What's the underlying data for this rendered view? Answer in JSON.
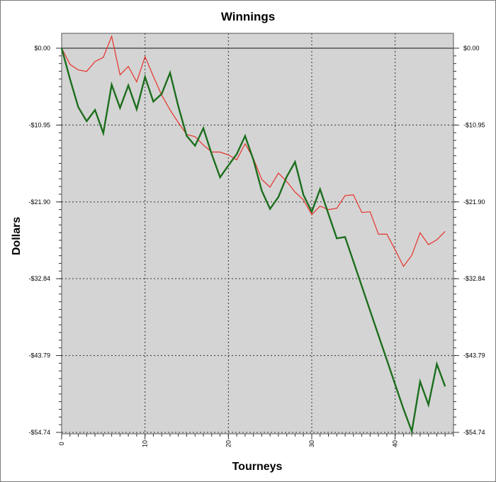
{
  "chart_data": {
    "type": "line",
    "title": "Winnings",
    "xlabel": "Tourneys",
    "ylabel": "Dollars",
    "xlim": [
      0,
      47
    ],
    "ylim": [
      -54.74,
      1.5
    ],
    "x_ticks": [
      0,
      10,
      20,
      30,
      40
    ],
    "y_ticks": [
      0,
      -10.95,
      -21.9,
      -32.84,
      -43.79,
      -54.74
    ],
    "y_tick_labels": [
      "$0.00",
      "-$10.95",
      "-$21.90",
      "-$32.84",
      "-$43.79",
      "-$54.74"
    ],
    "grid": true,
    "background": "#d4d4d4",
    "series": [
      {
        "color": "#e8312a",
        "width": 1.2,
        "x": [
          0,
          1,
          2,
          3,
          4,
          5,
          6,
          7,
          8,
          9,
          10,
          11,
          12,
          13,
          14,
          15,
          16,
          17,
          18,
          19,
          20,
          21,
          22,
          23,
          24,
          25,
          26,
          27,
          28,
          29,
          30,
          31,
          32,
          33,
          34,
          35,
          36,
          37,
          38,
          39,
          40,
          41,
          42,
          43,
          44,
          45,
          46
        ],
        "values": [
          0,
          -2.3,
          -3.1,
          -3.3,
          -1.9,
          -1.3,
          1.7,
          -3.8,
          -2.6,
          -4.8,
          -1.2,
          -4.0,
          -6.7,
          -8.8,
          -10.6,
          -12.3,
          -12.6,
          -13.8,
          -14.8,
          -14.8,
          -15.2,
          -15.9,
          -13.6,
          -15.7,
          -18.7,
          -19.8,
          -17.8,
          -19.0,
          -20.5,
          -21.6,
          -23.7,
          -22.5,
          -23.0,
          -22.8,
          -21.0,
          -20.9,
          -23.4,
          -23.3,
          -26.5,
          -26.5,
          -28.7,
          -31.1,
          -29.5,
          -26.3,
          -28.0,
          -27.3,
          -26.1
        ]
      },
      {
        "color": "#1c6e1c",
        "width": 2.4,
        "x": [
          0,
          1,
          2,
          3,
          4,
          5,
          6,
          7,
          8,
          9,
          10,
          11,
          12,
          13,
          14,
          15,
          16,
          17,
          18,
          19,
          20,
          21,
          22,
          23,
          24,
          25,
          26,
          27,
          28,
          29,
          30,
          31,
          32,
          33,
          34,
          35,
          36,
          37,
          38,
          39,
          40,
          41,
          42,
          43,
          44,
          45,
          46
        ],
        "values": [
          0,
          -4.4,
          -8.4,
          -10.4,
          -8.8,
          -12.1,
          -5.2,
          -8.5,
          -5.3,
          -8.7,
          -4.1,
          -7.6,
          -6.5,
          -3.5,
          -8.3,
          -12.5,
          -13.9,
          -11.4,
          -15.1,
          -18.4,
          -16.7,
          -15.1,
          -12.5,
          -15.9,
          -20.3,
          -22.9,
          -21.2,
          -18.3,
          -16.2,
          -20.9,
          -23.3,
          -20.1,
          -23.6,
          -27.1,
          -26.9,
          -30.4,
          -33.9,
          -37.4,
          -40.9,
          -44.4,
          -47.9,
          -51.4,
          -54.6,
          -47.5,
          -50.8,
          -45.0,
          -48.2
        ]
      }
    ]
  }
}
